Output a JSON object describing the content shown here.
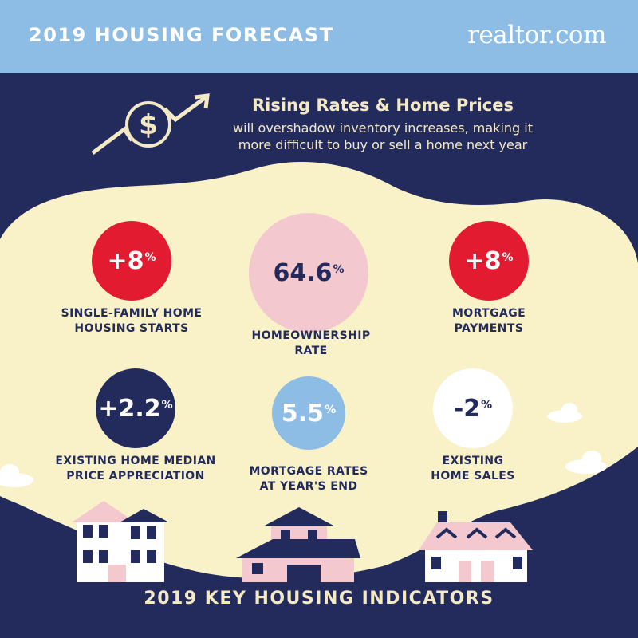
{
  "header": {
    "title": "2019 HOUSING FORECAST",
    "logo": "realtor.com"
  },
  "intro": {
    "heading": "Rising Rates & Home Prices",
    "body": "will overshadow inventory increases, making it more difficult to buy or sell a home next year"
  },
  "stats": [
    {
      "value": "+8",
      "unit": "%",
      "label_line1": "SINGLE-FAMILY HOME",
      "label_line2": "HOUSING STARTS"
    },
    {
      "value": "64.6",
      "unit": "%",
      "label_line1": "HOMEOWNERSHIP",
      "label_line2": "RATE"
    },
    {
      "value": "+8",
      "unit": "%",
      "label_line1": "MORTGAGE",
      "label_line2": "PAYMENTS"
    },
    {
      "value": "+2.2",
      "unit": "%",
      "label_line1": "EXISTING HOME MEDIAN",
      "label_line2": "PRICE APPRECIATION"
    },
    {
      "value": "5.5",
      "unit": "%",
      "label_line1": "MORTGAGE RATES",
      "label_line2": "AT YEAR'S END"
    },
    {
      "value": "-2",
      "unit": "%",
      "label_line1": "EXISTING",
      "label_line2": "HOME SALES"
    }
  ],
  "footer": {
    "title": "2019 KEY HOUSING INDICATORS"
  },
  "colors": {
    "navy": "#232b5c",
    "cream": "#f9f1c8",
    "red": "#e31b31",
    "pink": "#f3c9cf",
    "sky": "#8dbce4",
    "white": "#ffffff"
  },
  "icons": [
    "dollar-coin-icon",
    "trend-arrow-icon",
    "cloud-icon",
    "house-icon"
  ]
}
